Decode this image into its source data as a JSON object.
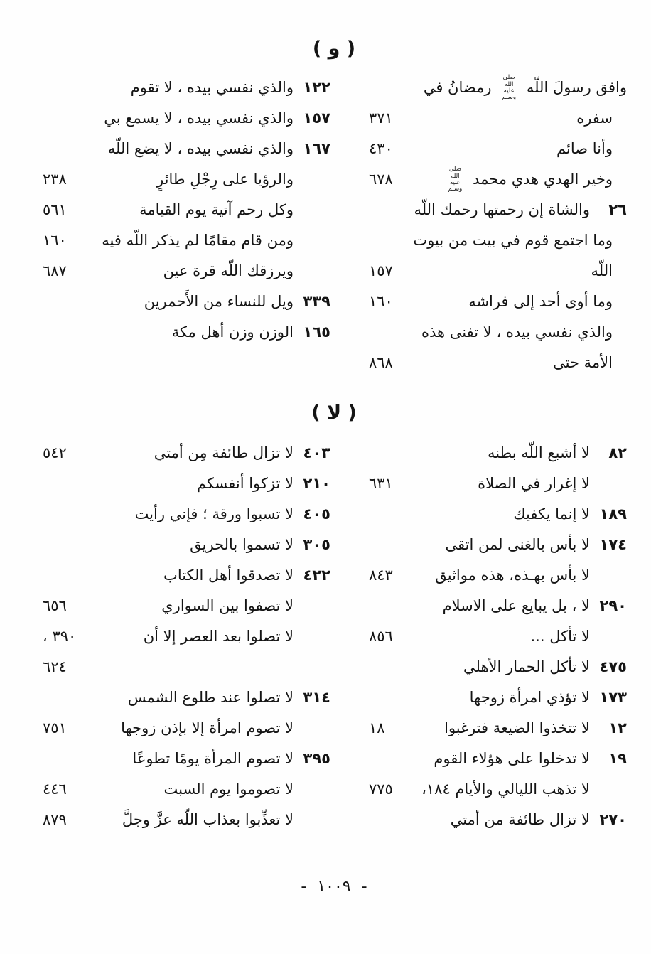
{
  "sections": [
    {
      "id": "waw",
      "header": "( و )",
      "columns": {
        "right": [
          {
            "lead": "",
            "text": "وافق رسولَ اللّه ﷺ رمضانُ في",
            "page": "",
            "ind": 0
          },
          {
            "lead": "",
            "text": "سفره",
            "page": "٣٧١",
            "ind": 1
          },
          {
            "lead": "",
            "text": "وأنا صائم",
            "page": "٤٣٠",
            "ind": 1
          },
          {
            "lead": "",
            "text": "وخير الهدي هدي محمد ﷺ",
            "page": "٦٧٨",
            "ind": 1
          },
          {
            "lead": "٢٦",
            "text": "والشاة إن رحمتها رحمك اللّه",
            "page": ""
          },
          {
            "lead": "",
            "text": "وما اجتمع قوم في بيت من بيوت",
            "page": "",
            "ind": 1
          },
          {
            "lead": "",
            "text": "اللّه",
            "page": "١٥٧",
            "ind": 1
          },
          {
            "lead": "",
            "text": "وما أوى أحد إلى فراشه",
            "page": "١٦٠",
            "ind": 1
          },
          {
            "lead": "",
            "text": "والذي نفسي بيده ، لا تفنى هذه",
            "page": "",
            "ind": 1
          },
          {
            "lead": "",
            "text": "الأمة حتى",
            "page": "٨٦٨",
            "ind": 1
          }
        ],
        "left": [
          {
            "lead": "١٢٢",
            "text": "والذي نفسي بيده ، لا تقوم",
            "page": ""
          },
          {
            "lead": "١٥٧",
            "text": "والذي نفسي بيده ، لا يسمع بي",
            "page": ""
          },
          {
            "lead": "١٦٧",
            "text": "والذي نفسي بيده ، لا يضع اللّه",
            "page": ""
          },
          {
            "lead": "",
            "text": "والرؤيا على رِجْلِ طائرٍ",
            "page": "٢٣٨"
          },
          {
            "lead": "",
            "text": "وكل رحم آتية يوم القيامة",
            "page": "٥٦١"
          },
          {
            "lead": "",
            "text": "ومن قام مقامًا لم يذكر اللّه فيه",
            "page": "١٦٠"
          },
          {
            "lead": "",
            "text": "ويرزقك اللّه قرة عين",
            "page": "٦٨٧"
          },
          {
            "lead": "٣٣٩",
            "text": "ويل للنساء من الأَحمرين",
            "page": ""
          },
          {
            "lead": "١٦٥",
            "text": "الوزن وزن أهل مكة",
            "page": ""
          }
        ]
      }
    },
    {
      "id": "la",
      "header": "( لا )",
      "columns": {
        "right": [
          {
            "lead": "٨٢",
            "text": "لا أشبع اللّه بطنه",
            "page": ""
          },
          {
            "lead": "",
            "text": "لا إغرار في الصلاة",
            "page": "٦٣١"
          },
          {
            "lead": "١٨٩",
            "text": "لا إنما يكفيك",
            "page": ""
          },
          {
            "lead": "١٧٤",
            "text": "لا بأس بالغنى لمن اتقى",
            "page": ""
          },
          {
            "lead": "",
            "text": "لا بأس بهـذه، هذه مواثيق",
            "page": "٨٤٣"
          },
          {
            "lead": "٢٩٠",
            "text": "لا ، بل يبايع على الاسلام",
            "page": ""
          },
          {
            "lead": "",
            "text": "لا تأكل ...",
            "page": "٨٥٦"
          },
          {
            "lead": "٤٧٥",
            "text": "لا تأكل الحمار الأهلي",
            "page": ""
          },
          {
            "lead": "١٧٣",
            "text": "لا تؤذي امرأة زوجها",
            "page": ""
          },
          {
            "lead": "١٢",
            "text": "لا تتخذوا الضيعة فترغبوا",
            "page": "١٨"
          },
          {
            "lead": "١٩",
            "text": "لا تدخلوا على هؤلاء القوم",
            "page": ""
          },
          {
            "lead": "",
            "text": "لا تذهب الليالي والأيام ١٨٤،",
            "page": "٧٧٥"
          },
          {
            "lead": "٢٧٠",
            "text": "لا تزال طائفة من أمتي",
            "page": ""
          }
        ],
        "left": [
          {
            "lead": "٤٠٣",
            "text": "لا تزال طائفة مِن أمتي",
            "page": "٥٤٢"
          },
          {
            "lead": "٢١٠",
            "text": "لا تزكوا أنفسكم",
            "page": ""
          },
          {
            "lead": "٤٠٥",
            "text": "لا تسبوا ورقة ؛ فإني رأيت",
            "page": ""
          },
          {
            "lead": "٣٠٥",
            "text": "لا تسموا بالحريق",
            "page": ""
          },
          {
            "lead": "٤٢٢",
            "text": "لا تصدقوا أهل الكتاب",
            "page": ""
          },
          {
            "lead": "",
            "text": "لا تصفوا بين السواري",
            "page": "٦٥٦"
          },
          {
            "lead": "",
            "text": "لا تصلوا بعد العصر إلا أن",
            "page": "٣٩٠ ،"
          },
          {
            "lead": "",
            "text": "",
            "page": "٦٢٤"
          },
          {
            "lead": "٣١٤",
            "text": "لا تصلوا عند طلوع الشمس",
            "page": ""
          },
          {
            "lead": "",
            "text": "لا تصوم امرأة إلا بإذن زوجها",
            "page": "٧٥١"
          },
          {
            "lead": "٣٩٥",
            "text": "لا تصوم المرأة يومًا تطوعًا",
            "page": ""
          },
          {
            "lead": "",
            "text": "لا تصوموا يوم السبت",
            "page": "٤٤٦"
          },
          {
            "lead": "",
            "text": "لا تعذِّبوا بعذاب اللّه عزَّ وجلَّ",
            "page": "٨٧٩"
          }
        ]
      }
    }
  ],
  "honorific_mark": "صلى الله عليه وسلم",
  "footer": {
    "text": "- ١٠٠٩ -"
  }
}
